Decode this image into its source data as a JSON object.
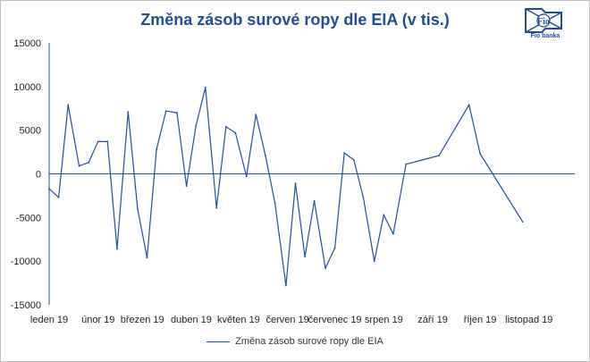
{
  "brand": {
    "logo_text": "Fio banka",
    "logo_mark": "Fio"
  },
  "colors": {
    "series": "#1f4e9a",
    "zero_line": "#1f4e9a",
    "axis": "#1f4e9a",
    "title": "#1f4e9a"
  },
  "chart_data": {
    "type": "line",
    "title": "Změna zásob surové ropy dle EIA (v tis.)",
    "xlabel": "",
    "ylabel": "",
    "ylim": [
      -15000,
      15000
    ],
    "yticks": [
      15000,
      10000,
      5000,
      0,
      -5000,
      -10000,
      -15000
    ],
    "xlim": [
      "2019-01-01",
      "2019-11-30"
    ],
    "x_tick_labels": [
      "leden 19",
      "únor 19",
      "březen 19",
      "duben 19",
      "květen 19",
      "červen 19",
      "červenec 19",
      "srpen 19",
      "září 19",
      "říjen 19",
      "listopad 19"
    ],
    "x_tick_dates": [
      "2019-01-01",
      "2019-02-01",
      "2019-03-01",
      "2019-04-01",
      "2019-05-01",
      "2019-06-01",
      "2019-07-01",
      "2019-08-01",
      "2019-09-01",
      "2019-10-01",
      "2019-11-01"
    ],
    "legend_position": "bottom",
    "grid": false,
    "series": [
      {
        "name": "Změna zásob surové ropy dle EIA",
        "points": [
          [
            "2019-01-01",
            -1700
          ],
          [
            "2019-01-07",
            -2700
          ],
          [
            "2019-01-13",
            7900
          ],
          [
            "2019-01-20",
            900
          ],
          [
            "2019-01-26",
            1300
          ],
          [
            "2019-02-01",
            3700
          ],
          [
            "2019-02-07",
            3700
          ],
          [
            "2019-02-13",
            -8600
          ],
          [
            "2019-02-20",
            7100
          ],
          [
            "2019-02-26",
            -4000
          ],
          [
            "2019-03-04",
            -9600
          ],
          [
            "2019-03-10",
            2800
          ],
          [
            "2019-03-16",
            7200
          ],
          [
            "2019-03-23",
            7000
          ],
          [
            "2019-03-29",
            -1400
          ],
          [
            "2019-04-04",
            5500
          ],
          [
            "2019-04-10",
            9900
          ],
          [
            "2019-04-17",
            -3900
          ],
          [
            "2019-04-23",
            5400
          ],
          [
            "2019-04-29",
            4700
          ],
          [
            "2019-05-06",
            -300
          ],
          [
            "2019-05-12",
            6800
          ],
          [
            "2019-05-18",
            2100
          ],
          [
            "2019-05-24",
            -3300
          ],
          [
            "2019-05-31",
            -12800
          ],
          [
            "2019-06-06",
            -1100
          ],
          [
            "2019-06-12",
            -9500
          ],
          [
            "2019-06-18",
            -3100
          ],
          [
            "2019-06-25",
            -10800
          ],
          [
            "2019-07-01",
            -8500
          ],
          [
            "2019-07-07",
            2400
          ],
          [
            "2019-07-13",
            1600
          ],
          [
            "2019-07-19",
            -2700
          ],
          [
            "2019-07-26",
            -10000
          ],
          [
            "2019-08-01",
            -4700
          ],
          [
            "2019-08-07",
            -6900
          ],
          [
            "2019-08-15",
            1100
          ],
          [
            "2019-09-05",
            2100
          ],
          [
            "2019-09-24",
            7900
          ],
          [
            "2019-10-01",
            2300
          ],
          [
            "2019-10-28",
            -5500
          ]
        ]
      }
    ]
  }
}
